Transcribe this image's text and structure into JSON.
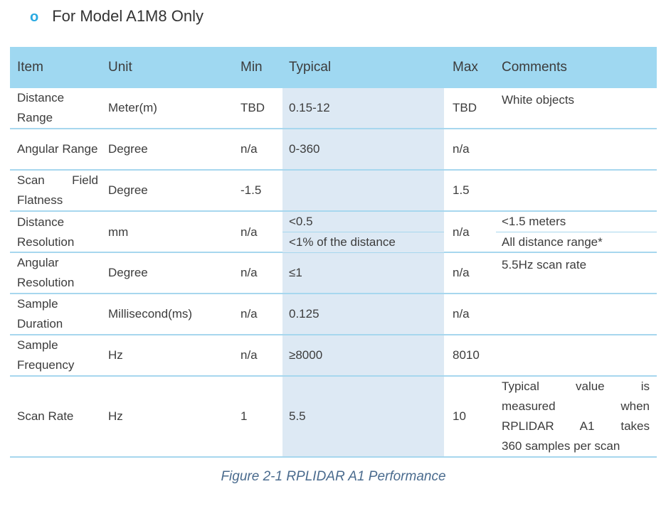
{
  "colors": {
    "header_bg": "#9fd8f1",
    "band_bg": "#dde9f4",
    "line": "#a7d7ee",
    "text": "#3c3c3c",
    "bullet": "#29a9e1",
    "caption": "#4a6b8e"
  },
  "title": {
    "bullet": "o",
    "text": "For Model A1M8 Only"
  },
  "table": {
    "columns": [
      "Item",
      "Unit",
      "Min",
      "Typical",
      "Max",
      "Comments"
    ],
    "rows": [
      {
        "item": "Distance Range",
        "unit": "Meter(m)",
        "min": "TBD",
        "typical": [
          "0.15-12"
        ],
        "max": "TBD",
        "comments": [
          "White objects"
        ]
      },
      {
        "item": "Angular Range",
        "unit": "Degree",
        "min": "n/a",
        "typical": [
          "0-360"
        ],
        "max": "n/a",
        "comments": []
      },
      {
        "item": "Scan Field Flatness",
        "unit": "Degree",
        "min": "-1.5",
        "typical": [],
        "max": "1.5",
        "comments": []
      },
      {
        "item": "Distance Resolution",
        "unit": "mm",
        "min": "n/a",
        "typical": [
          "<0.5",
          "<1% of the distance"
        ],
        "max": "n/a",
        "comments": [
          "<1.5 meters",
          "All distance range*"
        ]
      },
      {
        "item": "Angular Resolution",
        "unit": "Degree",
        "min": "n/a",
        "typical": [
          "≤1"
        ],
        "max": "n/a",
        "comments": [
          "5.5Hz scan rate"
        ]
      },
      {
        "item": "Sample Duration",
        "unit": "Millisecond(ms)",
        "min": "n/a",
        "typical": [
          "0.125"
        ],
        "max": "n/a",
        "comments": []
      },
      {
        "item": "Sample Frequency",
        "unit": "Hz",
        "min": "n/a",
        "typical": [
          "≥8000"
        ],
        "max": "8010",
        "comments": []
      },
      {
        "item": "Scan Rate",
        "unit": "Hz",
        "min": "1",
        "typical": [
          "5.5"
        ],
        "max": "10",
        "comments": [
          "Typical value is",
          "measured when",
          "RPLIDAR A1 takes",
          "360 samples per scan"
        ]
      }
    ]
  },
  "caption": "Figure 2-1 RPLIDAR A1 Performance"
}
